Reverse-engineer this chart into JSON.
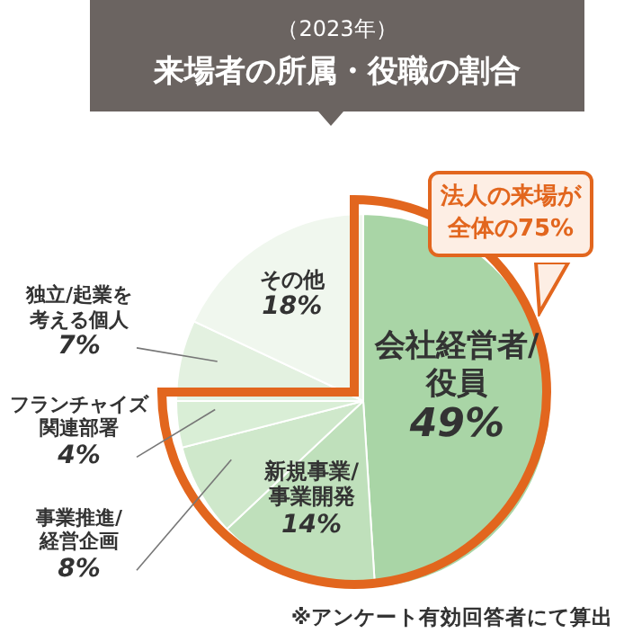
{
  "chart_data": {
    "type": "pie",
    "subtitle": "（2023年）",
    "title": "来場者の所属・役職の割合",
    "categories": [
      "会社経営者/役員",
      "新規事業/事業開発",
      "事業推進/経営企画",
      "フランチャイズ関連部署",
      "独立/起業を考える個人",
      "その他"
    ],
    "values": [
      49,
      14,
      8,
      4,
      7,
      18
    ],
    "colors": [
      "#a9d5a6",
      "#bfe0bb",
      "#cfe8cb",
      "#d9eed6",
      "#e3f1e0",
      "#f0f7ee"
    ],
    "value_labels": [
      "49%",
      "14%",
      "8%",
      "4%",
      "7%",
      "18%"
    ],
    "annotations": [
      "法人の来場が全体の75%",
      "※アンケート有効回答者にて算出"
    ]
  }
}
